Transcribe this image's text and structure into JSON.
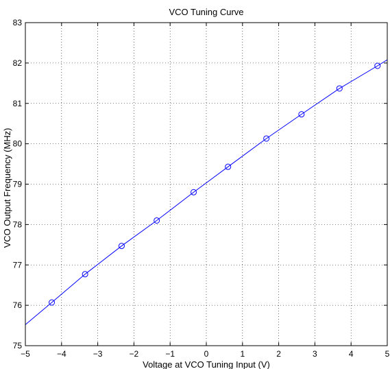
{
  "chart_data": {
    "type": "line",
    "title": "VCO Tuning Curve",
    "xlabel": "Voltage at VCO Tuning Input (V)",
    "ylabel": "VCO Output Frequency (MHz)",
    "xlim": [
      -5,
      5
    ],
    "ylim": [
      75,
      83
    ],
    "xticks": [
      -5,
      -4,
      -3,
      -2,
      -1,
      0,
      1,
      2,
      3,
      4,
      5
    ],
    "yticks": [
      75,
      76,
      77,
      78,
      79,
      80,
      81,
      82,
      83
    ],
    "xtick_labels": [
      "−5",
      "−4",
      "−3",
      "−2",
      "−1",
      "0",
      "1",
      "2",
      "3",
      "4",
      "5"
    ],
    "ytick_labels": [
      "75",
      "76",
      "77",
      "78",
      "79",
      "80",
      "81",
      "82",
      "83"
    ],
    "grid": true,
    "grid_style": "dotted",
    "series": [
      {
        "style": "line",
        "color": "#0000ff",
        "x": [
          -5,
          -4.27,
          -3.35,
          -2.34,
          -1.37,
          -0.35,
          0.6,
          1.66,
          2.63,
          3.68,
          4.73,
          5
        ],
        "y": [
          75.52,
          76.07,
          76.77,
          77.47,
          78.1,
          78.8,
          79.43,
          80.13,
          80.73,
          81.37,
          81.93,
          82.08
        ]
      },
      {
        "style": "markers",
        "marker": "circle",
        "color": "#0000ff",
        "x": [
          -4.27,
          -3.35,
          -2.34,
          -1.37,
          -0.35,
          0.6,
          1.66,
          2.63,
          3.68,
          4.73
        ],
        "y": [
          76.07,
          76.77,
          77.47,
          78.1,
          78.8,
          79.43,
          80.13,
          80.73,
          81.37,
          81.93
        ]
      }
    ]
  }
}
